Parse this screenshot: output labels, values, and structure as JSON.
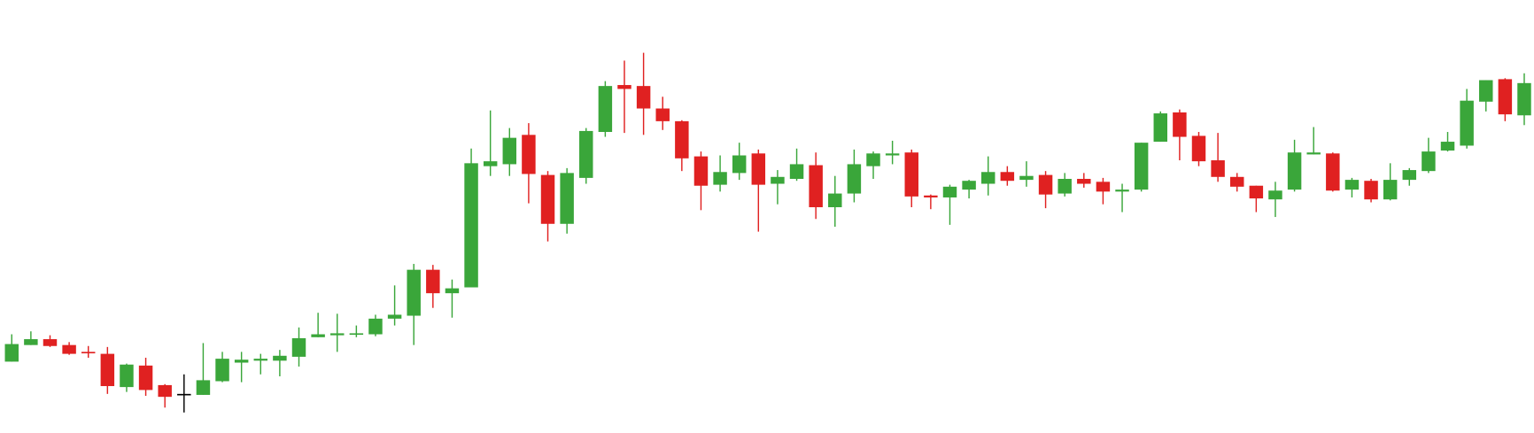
{
  "chart_data": {
    "type": "candlestick",
    "open": [
      73,
      90,
      96,
      90,
      83,
      81,
      47,
      69,
      49,
      40,
      39,
      53,
      72,
      74,
      74,
      78,
      98,
      100,
      101,
      101,
      117,
      120,
      167,
      143,
      149,
      273,
      275,
      305,
      264,
      214,
      261,
      308,
      356,
      355,
      332,
      319,
      283,
      254,
      266,
      286,
      255,
      260,
      274,
      231,
      245,
      273,
      284,
      287,
      243,
      241,
      249,
      255,
      267,
      259,
      264,
      245,
      260,
      257,
      247,
      249,
      298,
      328,
      304,
      279,
      262,
      253,
      239,
      249,
      285,
      286,
      249,
      258,
      239,
      259,
      268,
      289,
      294,
      339,
      362,
      325
    ],
    "high": [
      101,
      104,
      100,
      93,
      89,
      88,
      71,
      77,
      50,
      60,
      92,
      83,
      83,
      81,
      85,
      108,
      123,
      122,
      110,
      121,
      151,
      173,
      172,
      157,
      291,
      330,
      312,
      317,
      268,
      271,
      312,
      360,
      381,
      389,
      344,
      320,
      288,
      284,
      297,
      290,
      269,
      291,
      287,
      263,
      290,
      288,
      299,
      290,
      244,
      254,
      259,
      283,
      273,
      278,
      268,
      266,
      266,
      261,
      255,
      297,
      329,
      331,
      308,
      307,
      266,
      253,
      257,
      300,
      313,
      287,
      261,
      260,
      276,
      271,
      302,
      308,
      352,
      361,
      363,
      368
    ],
    "low": [
      73,
      90,
      88,
      80,
      77,
      40,
      42,
      38,
      26,
      21,
      39,
      52,
      52,
      60,
      58,
      68,
      98,
      83,
      98,
      99,
      110,
      90,
      128,
      118,
      149,
      263,
      263,
      235,
      196,
      204,
      255,
      303,
      307,
      305,
      310,
      268,
      228,
      247,
      259,
      206,
      234,
      258,
      219,
      211,
      236,
      260,
      275,
      231,
      229,
      213,
      240,
      243,
      253,
      252,
      230,
      242,
      251,
      234,
      226,
      247,
      298,
      279,
      273,
      257,
      247,
      226,
      221,
      247,
      285,
      247,
      241,
      236,
      238,
      253,
      266,
      288,
      291,
      329,
      319,
      315
    ],
    "close": [
      91,
      96,
      89,
      81,
      82,
      48,
      70,
      44,
      37,
      40,
      54,
      76,
      75,
      76,
      79,
      97,
      101,
      102,
      102,
      117,
      121,
      167,
      143,
      148,
      276,
      278,
      302,
      265,
      214,
      266,
      309,
      355,
      352,
      332,
      319,
      281,
      253,
      267,
      284,
      254,
      262,
      275,
      231,
      245,
      275,
      286,
      286,
      242,
      241,
      252,
      258,
      267,
      258,
      263,
      244,
      260,
      255,
      247,
      249,
      297,
      327,
      303,
      278,
      262,
      252,
      240,
      248,
      287,
      287,
      248,
      259,
      239,
      259,
      269,
      288,
      298,
      340,
      361,
      326,
      358
    ],
    "up_color": "#3aa63a",
    "down_color": "#e02121",
    "doji_color": "#000000",
    "ylim": [
      0,
      443
    ]
  }
}
